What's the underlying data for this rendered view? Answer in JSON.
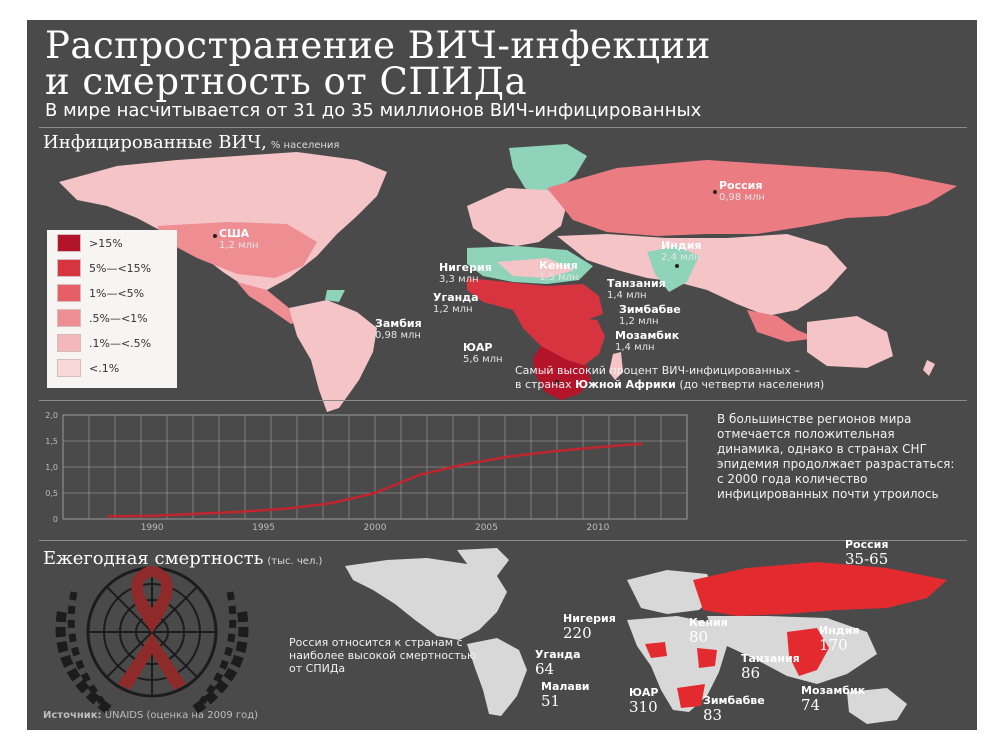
{
  "title_line1": "Распространение ВИЧ-инфекции",
  "title_line2": "и смертность от СПИДа",
  "subtitle": "В мире насчитывается от 31 до 35 миллионов ВИЧ-инфицированных",
  "section_infected": {
    "title": "Инфицированные ВИЧ,",
    "note": "% населения"
  },
  "legend": [
    {
      "label": ">15%",
      "color": "#b3142a"
    },
    {
      "label": "5%—<15%",
      "color": "#d8343f"
    },
    {
      "label": "1%—<5%",
      "color": "#e65f66"
    },
    {
      "label": ".5%—<1%",
      "color": "#ee8d92"
    },
    {
      "label": ".1%—<.5%",
      "color": "#f4b8bb"
    },
    {
      "label": "<.1%",
      "color": "#f8d7d8"
    }
  ],
  "infected_labels": {
    "russia": {
      "name": "Россия",
      "value": "0,98 млн"
    },
    "usa": {
      "name": "США",
      "value": "1,2 млн"
    },
    "india": {
      "name": "Индия",
      "value": "2,4 млн"
    },
    "nigeria": {
      "name": "Нигерия",
      "value": "3,3 млн"
    },
    "kenya": {
      "name": "Кения",
      "value": "1,5 млн"
    },
    "tanzania": {
      "name": "Танзания",
      "value": "1,4 млн"
    },
    "uganda": {
      "name": "Уганда",
      "value": "1,2 млн"
    },
    "zimbabwe": {
      "name": "Зимбабве",
      "value": "1,2 млн"
    },
    "zambia": {
      "name": "Замбия",
      "value": "0,98 млн"
    },
    "mozambique": {
      "name": "Мозамбик",
      "value": "1,4 млн"
    },
    "sar": {
      "name": "ЮАР",
      "value": "5,6 млн"
    }
  },
  "africa_note": {
    "line1": "Самый высокий процент ВИЧ-инфицированных –",
    "line2_prefix": "в странах",
    "line2_bold": "Южной Африки",
    "line2_suffix": "(до четверти населения)"
  },
  "trend": {
    "y_ticks": [
      "2,0",
      "1,5",
      "1,0",
      "0,5",
      "0"
    ],
    "x_ticks": [
      "1990",
      "1995",
      "2000",
      "2005",
      "2010"
    ],
    "side_text": "В большинстве регионов мира отмечается положительная динамика, однако в странах СНГ эпидемия продолжает разрастаться: с 2000 года количество инфицированных почти утроилось"
  },
  "chart_data": {
    "type": "line",
    "x": [
      1988,
      1990,
      1992,
      1994,
      1996,
      1998,
      2000,
      2002,
      2004,
      2006,
      2008,
      2010,
      2012
    ],
    "series": [
      {
        "values": [
          0.05,
          0.06,
          0.1,
          0.14,
          0.2,
          0.3,
          0.5,
          0.85,
          1.05,
          1.2,
          1.3,
          1.38,
          1.45
        ]
      }
    ],
    "xlim": [
      1986,
      2014
    ],
    "ylim": [
      0,
      2.0
    ],
    "color": "#c0262d"
  },
  "section_deaths": {
    "title": "Ежегодная смертность",
    "note": "(тыс. чел.)"
  },
  "death_labels": {
    "russia": {
      "name": "Россия",
      "value": "35-65"
    },
    "nigeria": {
      "name": "Нигерия",
      "value": "220"
    },
    "kenya": {
      "name": "Кения",
      "value": "80"
    },
    "india": {
      "name": "Индия",
      "value": "170"
    },
    "uganda": {
      "name": "Уганда",
      "value": "64"
    },
    "tanzania": {
      "name": "Танзания",
      "value": "86"
    },
    "malawi": {
      "name": "Малави",
      "value": "51"
    },
    "sar": {
      "name": "ЮАР",
      "value": "310"
    },
    "zimbabwe": {
      "name": "Зимбабве",
      "value": "83"
    },
    "mozambique": {
      "name": "Мозамбик",
      "value": "74"
    }
  },
  "russia_note": "Россия относится к странам с наиболее высокой смертностью от СПИДа",
  "source": {
    "label": "Источник:",
    "text": "UNAIDS (оценка на 2009 год)"
  },
  "colors": {
    "background": "#4a4a4a",
    "light_land": "#f4c4c6",
    "mid_land": "#ea7c82",
    "dark_land": "#c8202c",
    "green_land": "#8fd3bb",
    "grey_land": "#d8d8d8",
    "accent": "#c0262d"
  }
}
